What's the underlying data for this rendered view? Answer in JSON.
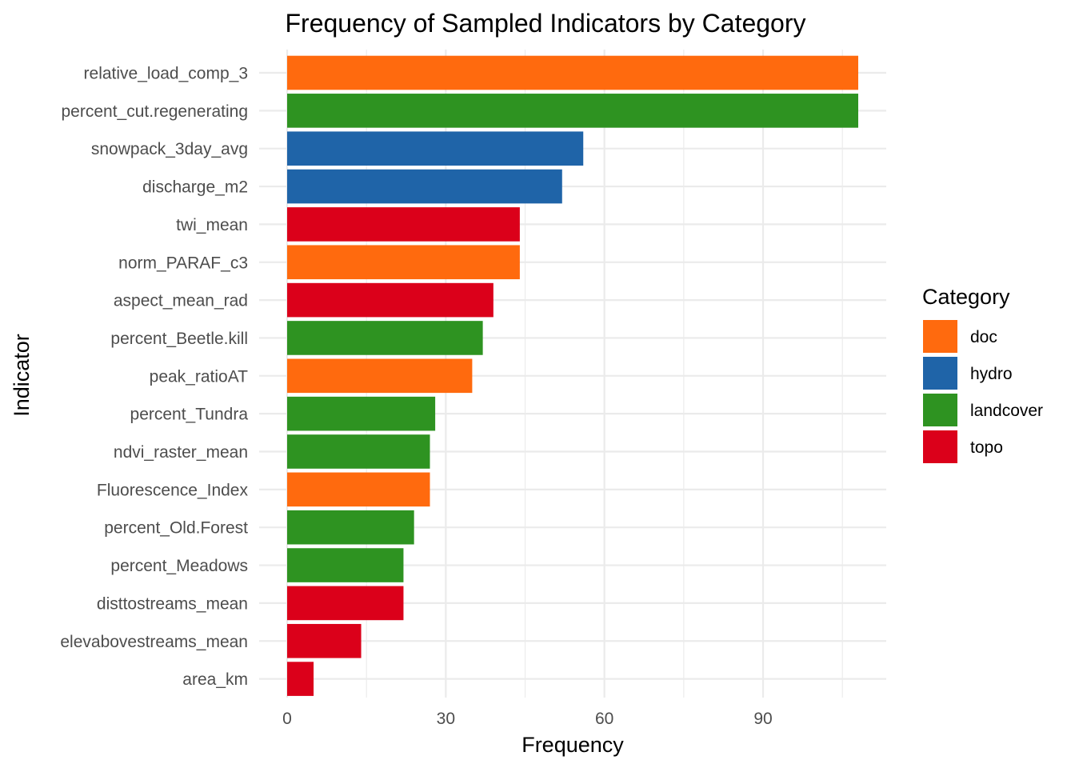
{
  "chart_data": {
    "type": "bar",
    "orientation": "horizontal",
    "title": "Frequency of Sampled Indicators by Category",
    "xlabel": "Frequency",
    "ylabel": "Indicator",
    "xlim": [
      0,
      108
    ],
    "xticks": [
      0,
      30,
      60,
      90
    ],
    "xtick_labels": [
      "0",
      "30",
      "60",
      "90"
    ],
    "grid": true,
    "legend": {
      "title": "Category",
      "placement": "right",
      "items": [
        {
          "name": "doc",
          "color": "#FF6A0E"
        },
        {
          "name": "hydro",
          "color": "#1F64A8"
        },
        {
          "name": "landcover",
          "color": "#2E9321"
        },
        {
          "name": "topo",
          "color": "#DB001A"
        }
      ]
    },
    "bars": [
      {
        "label": "relative_load_comp_3",
        "value": 108,
        "category": "doc"
      },
      {
        "label": "percent_cut.regenerating",
        "value": 108,
        "category": "landcover"
      },
      {
        "label": "snowpack_3day_avg",
        "value": 56,
        "category": "hydro"
      },
      {
        "label": "discharge_m2",
        "value": 52,
        "category": "hydro"
      },
      {
        "label": "twi_mean",
        "value": 44,
        "category": "topo"
      },
      {
        "label": "norm_PARAF_c3",
        "value": 44,
        "category": "doc"
      },
      {
        "label": "aspect_mean_rad",
        "value": 39,
        "category": "topo"
      },
      {
        "label": "percent_Beetle.kill",
        "value": 37,
        "category": "landcover"
      },
      {
        "label": "peak_ratioAT",
        "value": 35,
        "category": "doc"
      },
      {
        "label": "percent_Tundra",
        "value": 28,
        "category": "landcover"
      },
      {
        "label": "ndvi_raster_mean",
        "value": 27,
        "category": "landcover"
      },
      {
        "label": "Fluorescence_Index",
        "value": 27,
        "category": "doc"
      },
      {
        "label": "percent_Old.Forest",
        "value": 24,
        "category": "landcover"
      },
      {
        "label": "percent_Meadows",
        "value": 22,
        "category": "landcover"
      },
      {
        "label": "disttostreams_mean",
        "value": 22,
        "category": "topo"
      },
      {
        "label": "elevabovestreams_mean",
        "value": 14,
        "category": "topo"
      },
      {
        "label": "area_km",
        "value": 5,
        "category": "topo"
      }
    ]
  }
}
